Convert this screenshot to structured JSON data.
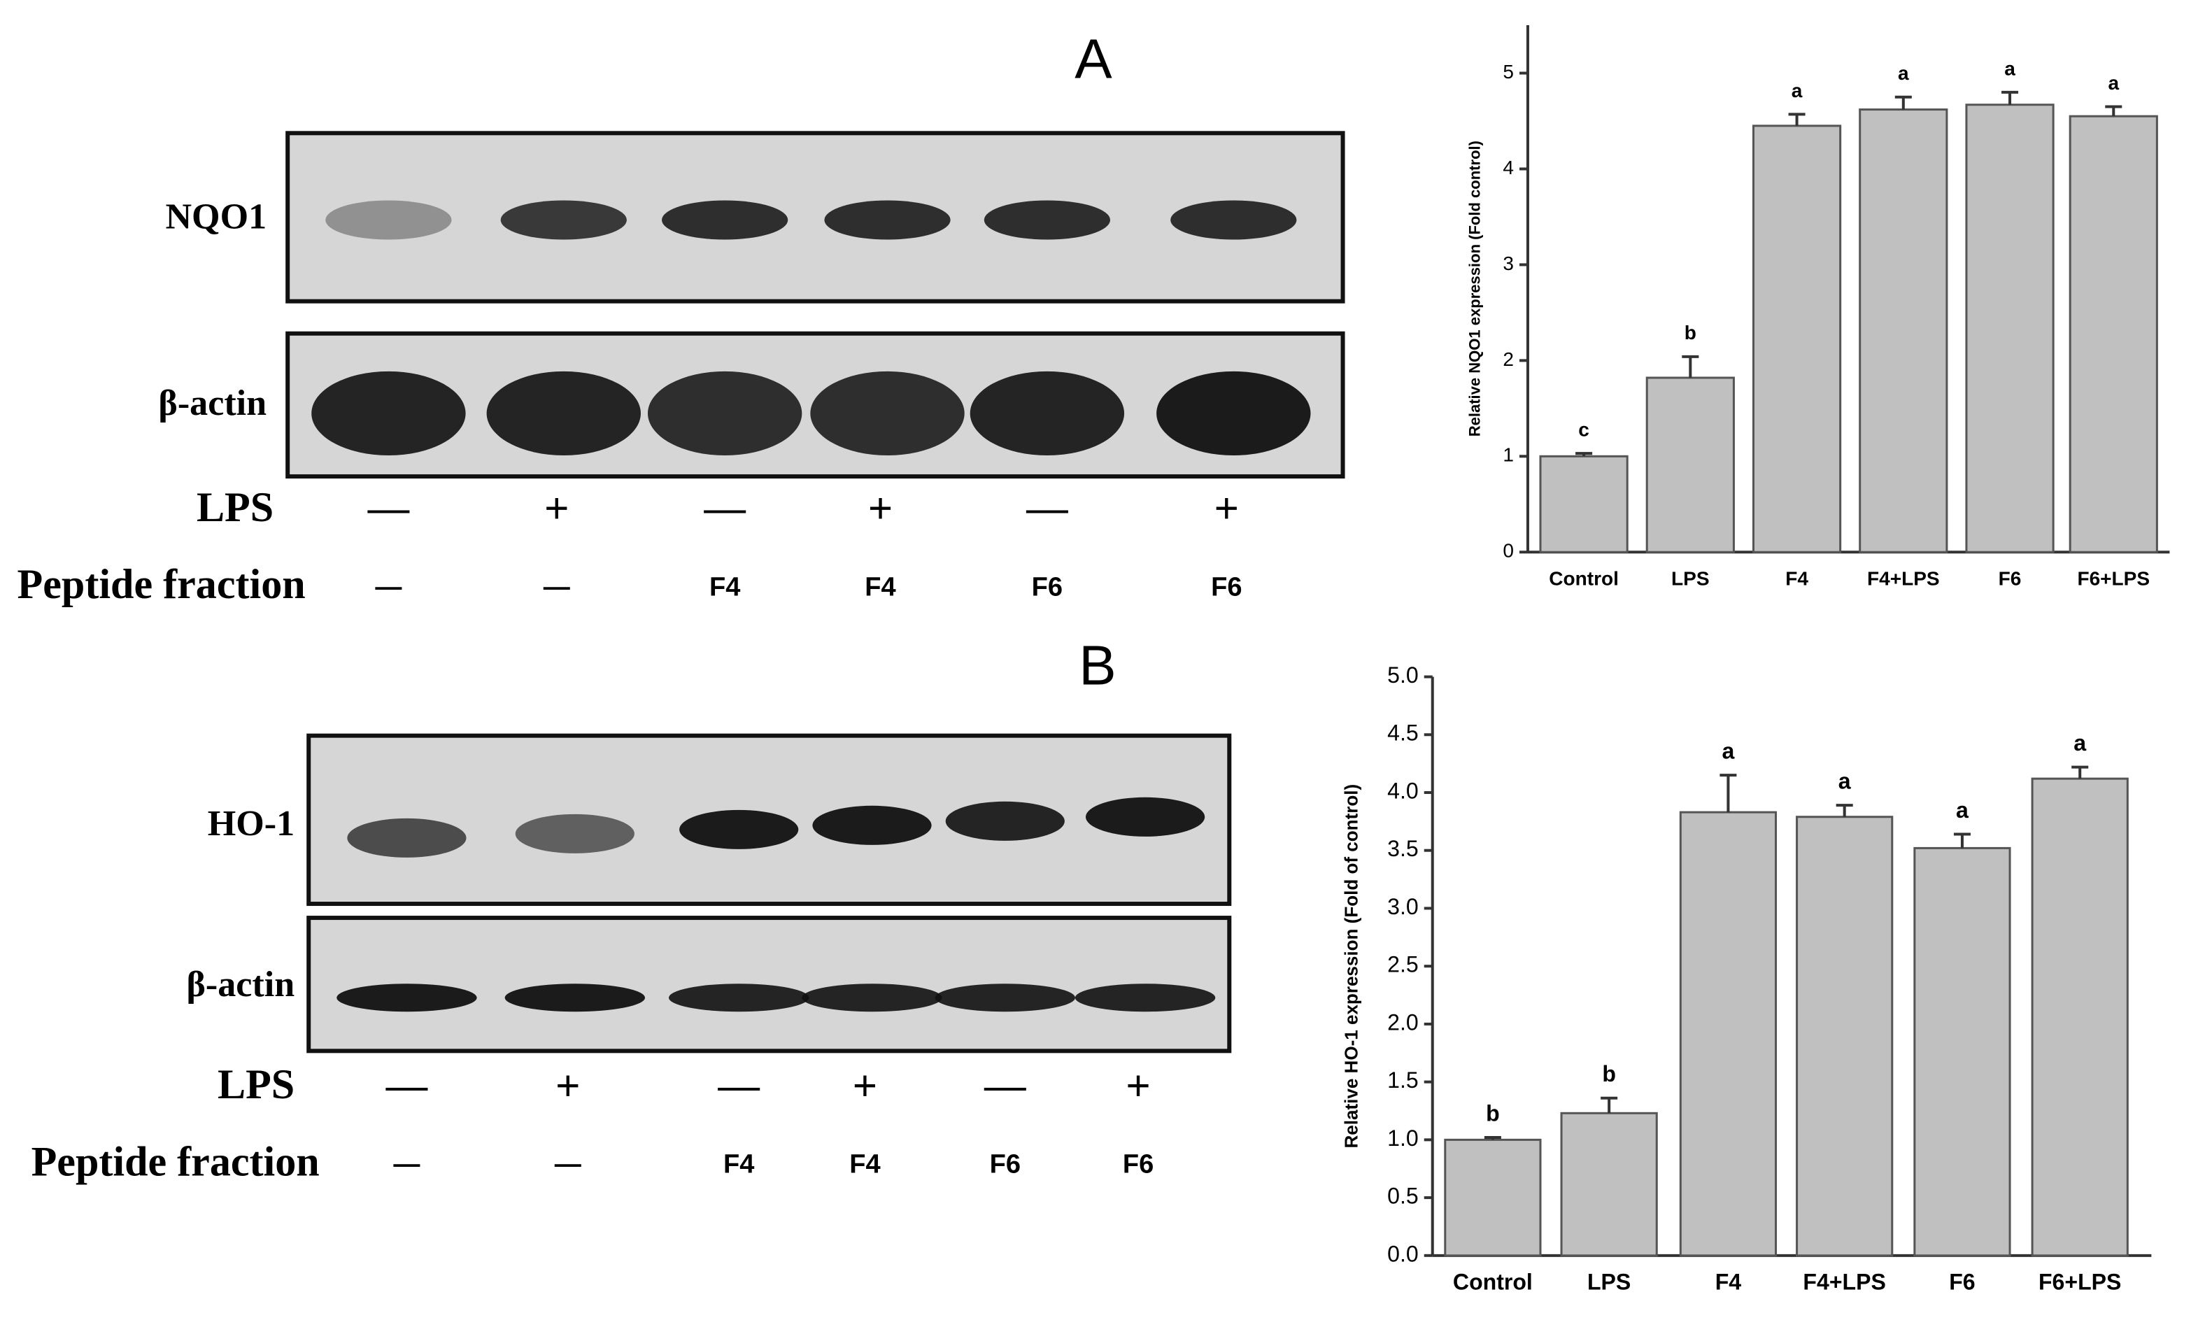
{
  "blots": [
    {
      "panel": "A",
      "rows": [
        "NQO1",
        "β-actin"
      ],
      "conditions": [
        {
          "label": "LPS",
          "values": [
            "—",
            "+",
            "—",
            "+",
            "—",
            "+"
          ]
        },
        {
          "label": "Peptide fraction",
          "values": [
            "—",
            "—",
            "F4",
            "F4",
            "F6",
            "F6"
          ]
        }
      ]
    },
    {
      "panel": "B",
      "rows": [
        "HO-1",
        "β-actin"
      ],
      "conditions": [
        {
          "label": "LPS",
          "values": [
            "—",
            "+",
            "—",
            "+",
            "—",
            "+"
          ]
        },
        {
          "label": "Peptide fraction",
          "values": [
            "—",
            "—",
            "F4",
            "F4",
            "F6",
            "F6"
          ]
        }
      ]
    }
  ],
  "chart_data": [
    {
      "type": "bar",
      "y_label": "Relative NQO1 expression (Fold control)",
      "categories": [
        "Control",
        "LPS",
        "F4",
        "F4+LPS",
        "F6",
        "F6+LPS"
      ],
      "values": [
        1.0,
        1.82,
        4.45,
        4.62,
        4.67,
        4.55
      ],
      "errors": [
        0.03,
        0.22,
        0.12,
        0.13,
        0.13,
        0.1
      ],
      "annotations": [
        "c",
        "b",
        "a",
        "a",
        "a",
        "a"
      ],
      "color": "#c0c0c0",
      "ylim": [
        0,
        5.5
      ],
      "yticks": [
        0,
        1,
        2,
        3,
        4,
        5
      ]
    },
    {
      "type": "bar",
      "y_label": "Relative HO-1 expression (Fold of control)",
      "categories": [
        "Control",
        "LPS",
        "F4",
        "F4+LPS",
        "F6",
        "F6+LPS"
      ],
      "values": [
        1.0,
        1.23,
        3.83,
        3.79,
        3.52,
        4.12
      ],
      "errors": [
        0.02,
        0.13,
        0.32,
        0.1,
        0.12,
        0.1
      ],
      "annotations": [
        "b",
        "b",
        "a",
        "a",
        "a",
        "a"
      ],
      "color": "#c0c0c0",
      "ylim": [
        0,
        5
      ],
      "yticks": [
        {
          "value": 0,
          "label": "0.0"
        },
        {
          "value": 0.5,
          "label": "0.5"
        },
        {
          "value": 1,
          "label": "1.0"
        },
        {
          "value": 1.5,
          "label": "1.5"
        },
        {
          "value": 2,
          "label": "2.0"
        },
        {
          "value": 2.5,
          "label": "2.5"
        },
        {
          "value": 3,
          "label": "3.0"
        },
        {
          "value": 3.5,
          "label": "3.5"
        },
        {
          "value": 4,
          "label": "4.0"
        },
        {
          "value": 4.5,
          "label": "4.5"
        },
        {
          "value": 5,
          "label": "5.0"
        }
      ]
    }
  ]
}
